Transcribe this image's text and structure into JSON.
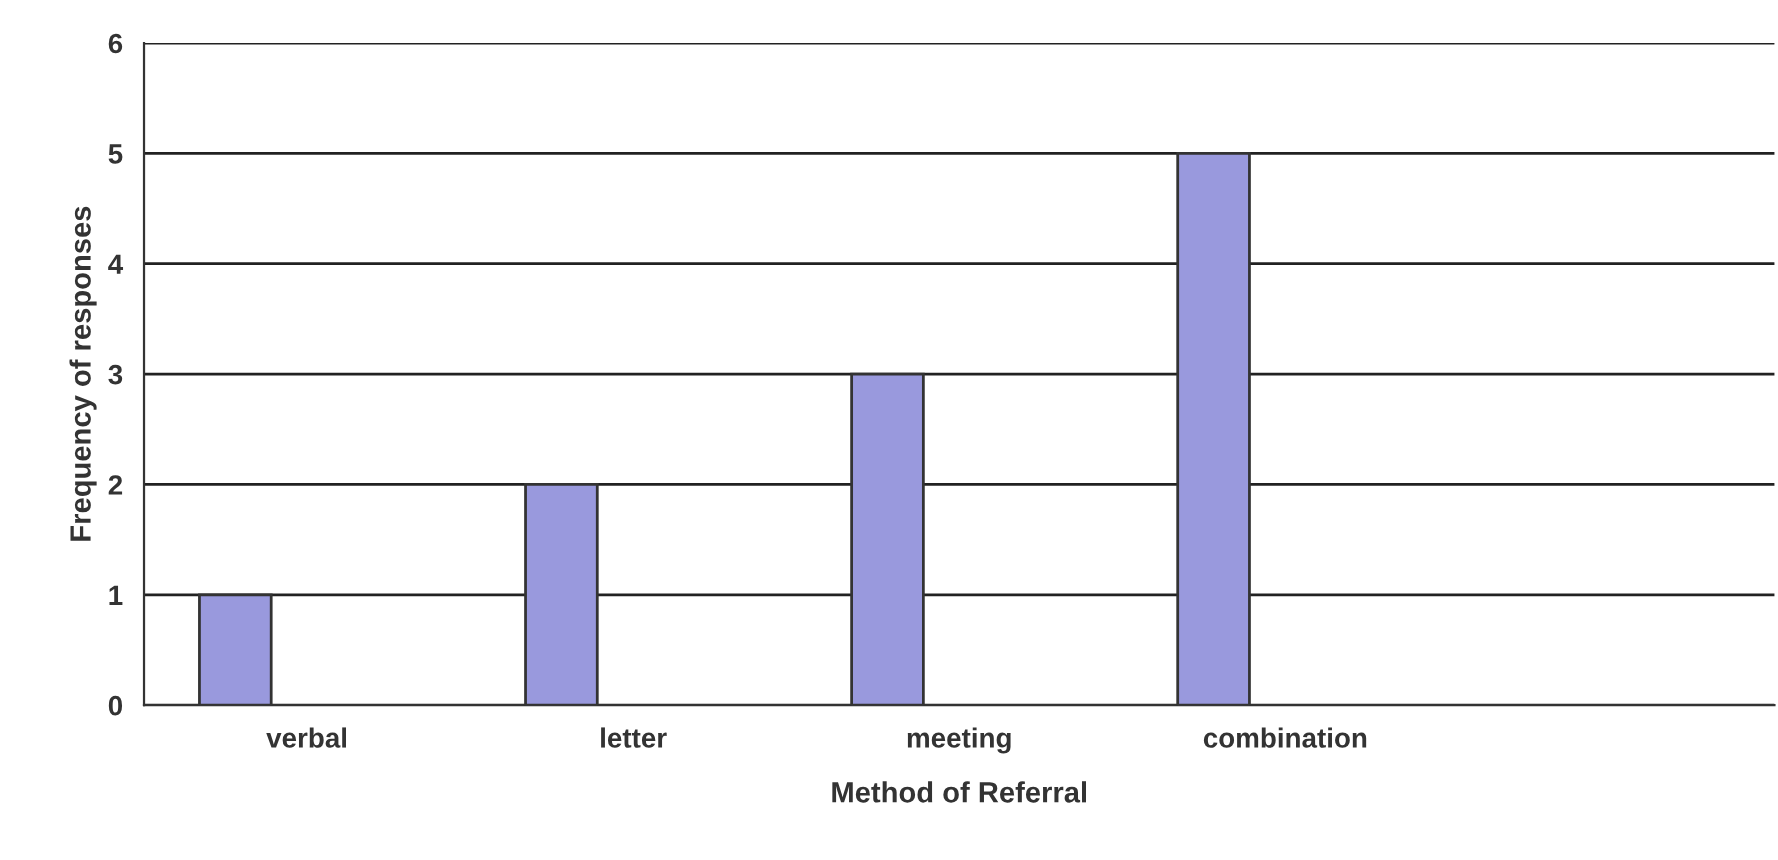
{
  "chart_data": {
    "type": "bar",
    "xlabel": "Method of Referral",
    "ylabel": "Frequency of responses",
    "categories": [
      "verbal",
      "letter",
      "meeting",
      "combination",
      null
    ],
    "values": [
      1,
      2,
      3,
      5,
      null
    ],
    "color": "#9999dd",
    "ylim": [
      0,
      6
    ],
    "yticks": [
      0,
      1,
      2,
      3,
      4,
      5,
      6
    ],
    "grid": "y",
    "legend": false
  }
}
